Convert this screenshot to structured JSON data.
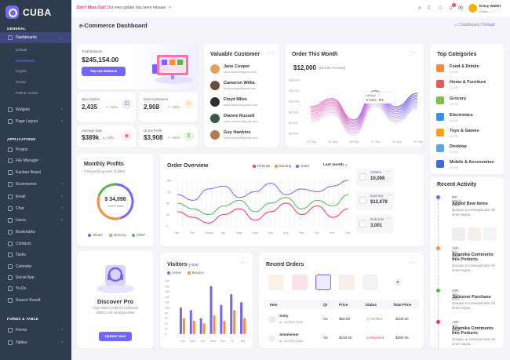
{
  "brand": {
    "name": "CUBA"
  },
  "sidebar": {
    "sections": [
      "GENERAL",
      "APPLICATIONS",
      "FORMS & TABLE"
    ],
    "items": [
      {
        "label": "Dashboards",
        "active": true,
        "icon": "home-icon"
      },
      {
        "label": "Widgets",
        "icon": "widgets-icon"
      },
      {
        "label": "Page Layout",
        "icon": "layout-icon"
      },
      {
        "label": "Project",
        "icon": "project-icon"
      },
      {
        "label": "File Manager",
        "icon": "file-icon"
      },
      {
        "label": "Kanban Board",
        "icon": "kanban-icon"
      },
      {
        "label": "Ecommerce",
        "icon": "cart-icon"
      },
      {
        "label": "Email",
        "icon": "email-icon"
      },
      {
        "label": "Chat",
        "icon": "chat-icon"
      },
      {
        "label": "Users",
        "icon": "users-icon"
      },
      {
        "label": "Bookmarks",
        "icon": "bookmark-icon"
      },
      {
        "label": "Contacts",
        "icon": "contacts-icon"
      },
      {
        "label": "Tasks",
        "icon": "tasks-icon"
      },
      {
        "label": "Calendar",
        "icon": "calendar-icon"
      },
      {
        "label": "Social App",
        "icon": "social-icon"
      },
      {
        "label": "To-Do",
        "icon": "todo-icon"
      },
      {
        "label": "Search Result",
        "icon": "search-icon"
      },
      {
        "label": "Forms",
        "icon": "forms-icon"
      },
      {
        "label": "Tables",
        "icon": "tables-icon"
      }
    ],
    "sub": [
      "Default",
      "Ecommerce",
      "Crypto",
      "Social",
      "Online course"
    ]
  },
  "topbar": {
    "notice_bold": "Don't Miss Out!",
    "notice_text": " Out new update has been release.",
    "user_name": "Emay Walter",
    "user_role": "Admin",
    "badge_count": "1"
  },
  "page": {
    "title": "e-Commerce Dashboard",
    "crumb_mid": "Dashboard",
    "crumb_cur": "Default"
  },
  "balance": {
    "label": "Total Balance",
    "value": "$245,154.00",
    "button": "Top Up Balance"
  },
  "stats": [
    {
      "label": "New Orders",
      "value": "2,435",
      "change": "+50%",
      "trend": "up"
    },
    {
      "label": "New Customers",
      "value": "2,908",
      "change": "+20%",
      "trend": "up"
    },
    {
      "label": "Average Sale",
      "value": "$389k",
      "change": "-10%",
      "trend": "down"
    },
    {
      "label": "Gross Profit",
      "value": "$3,908",
      "change": "+80%",
      "trend": "up"
    }
  ],
  "valuable": {
    "title": "Valuable Customer",
    "customers": [
      {
        "name": "Jane Cooper",
        "email": "alma.lawson@gmail.com",
        "color": "#e3a25a"
      },
      {
        "name": "Cameron Willia",
        "email": "tim.jennings@gmail.com",
        "color": "#6a4c3b"
      },
      {
        "name": "Floyd Miles",
        "email": "kenzi.lawson@gmail.com",
        "color": "#2d2d2d"
      },
      {
        "name": "Dianne Russell",
        "email": "curtis.weaver@gmail.com",
        "color": "#3a5a40"
      },
      {
        "name": "Guy Hawkins",
        "email": "curtis.weaver@gmail.com",
        "color": "#b07b4f"
      }
    ]
  },
  "order_month": {
    "title": "Order This Month",
    "value": "$12,000",
    "goal": "(15,000 To Goal)",
    "tooltip_date": "06 Sep",
    "tooltip_text": "Sales - $4k",
    "yticks": [
      "$14,000",
      "$12,000",
      "$10,000",
      "$8,000",
      "$6,000",
      "$4,000"
    ],
    "xticks": [
      "01 Sep",
      "03 Sep",
      "05 Sep",
      "07 Sep",
      "09 Sep",
      "10 Sep"
    ]
  },
  "top_categories": {
    "title": "Top Categories",
    "items": [
      {
        "name": "Food & Drinks",
        "sub": "12,200",
        "color": "#ff8a3d"
      },
      {
        "name": "Home & Furniture",
        "sub": "12,200",
        "color": "#e85a4f"
      },
      {
        "name": "Grocery",
        "sub": "12,200",
        "color": "#7fbf4d"
      },
      {
        "name": "Electronics",
        "sub": "12,200",
        "color": "#3b8ef0"
      },
      {
        "name": "Toys & Games",
        "sub": "12,200",
        "color": "#f4a21e"
      },
      {
        "name": "Desktop",
        "sub": "12,200",
        "color": "#5aa6e8"
      },
      {
        "name": "Mobile & Accessories",
        "sub": "12,200",
        "color": "#3f6ad8"
      }
    ]
  },
  "monthly_profits": {
    "title": "Monthly Profits",
    "sub": "(Total profit growth of 30%)",
    "value": "$ 34,098",
    "value_label": "Total Profits",
    "legend": [
      "Shoes",
      "Grocery",
      "Other"
    ]
  },
  "order_overview": {
    "title": "Order Overview",
    "legend": [
      "Refunds",
      "Earning",
      "Order"
    ],
    "range": "Last month",
    "yticks": [
      "16k",
      "12k",
      "8k",
      "4k",
      "0"
    ],
    "xticks": [
      "Jan",
      "Feb",
      "March",
      "Apr",
      "May",
      "June",
      "July",
      "Aug",
      "Sep",
      "Oct",
      "Nov",
      "Dec"
    ],
    "stats": [
      {
        "label": "Orders",
        "value": "10,098"
      },
      {
        "label": "Earning",
        "value": "$12,678"
      },
      {
        "label": "Refunds",
        "value": "3,001"
      }
    ]
  },
  "recent_activity": {
    "title": "Recent Activity",
    "items": [
      {
        "time": "8th March, 2022",
        "title": "Added Bew Items",
        "desc": "Quisque a consequat ante Sit amet magna...",
        "color": "#7366ff"
      },
      {
        "time": "15th Oct, 2022",
        "title": "Anamika Comments this Poducts",
        "desc": "Quisque a consequat ante Sit amet magna...",
        "color": "#ff8b3d"
      },
      {
        "time": "20th Sep, 2022",
        "title": "Jacksion Purchase",
        "desc": "Quisque a consequat ante Sit amet magna...",
        "color": "#54ba4a"
      },
      {
        "time": "15th Oct, 2022",
        "title": "Anamika Comments this Poducts",
        "desc": "Quisque a consequat ante Sit amet magna...",
        "color": "#f73164"
      }
    ]
  },
  "discover": {
    "title": "Discover Pro",
    "desc": "Amet minim mollit non deserunt ullamco est sit aliqua dolor",
    "button": "Update Now"
  },
  "visitors": {
    "title": "Visitors",
    "change": "(+2.6)",
    "legend": [
      "Active",
      "Bounce"
    ],
    "yticks": [
      "200",
      "180",
      "160",
      "140",
      "120",
      "100",
      "80",
      "60",
      "40",
      "20",
      "0"
    ],
    "xticks": [
      "Sun",
      "Mon",
      "Tue",
      "Wed",
      "Thu",
      "Fri",
      "Sat"
    ]
  },
  "recent_orders": {
    "title": "Recent Orders",
    "headers": [
      "Item",
      "Qt",
      "Price",
      "Status",
      "Total Price"
    ],
    "rows": [
      {
        "name": "Sony",
        "id": "Id : #CFDE-2163",
        "qt": "X1",
        "price": "$56.00",
        "status": "Verified",
        "total": "$100.00"
      },
      {
        "name": "Sennheiser",
        "id": "Id : #CFDE-2163",
        "qt": "X2",
        "price": "$150.00",
        "status": "Rejected",
        "total": "$390.00"
      }
    ]
  },
  "chart_data": [
    {
      "type": "area",
      "title": "Order This Month",
      "ylim": [
        4000,
        14000
      ],
      "x": [
        "01 Sep",
        "03 Sep",
        "05 Sep",
        "07 Sep",
        "09 Sep",
        "10 Sep"
      ],
      "series": [
        {
          "values": [
            9000,
            10500,
            6500,
            12000,
            9000,
            11500
          ]
        }
      ]
    },
    {
      "type": "line",
      "title": "Order Overview",
      "ylim": [
        0,
        16000
      ],
      "categories": [
        "Jan",
        "Feb",
        "March",
        "Apr",
        "May",
        "June",
        "July",
        "Aug",
        "Sep",
        "Oct",
        "Nov",
        "Dec"
      ],
      "series": [
        {
          "name": "Refunds",
          "values": [
            5000,
            3000,
            1000,
            4000,
            6000,
            2000,
            5000,
            8000,
            4000,
            7000,
            3000,
            6000
          ]
        },
        {
          "name": "Earning",
          "values": [
            8000,
            6000,
            4000,
            7000,
            9000,
            5000,
            8000,
            10000,
            6000,
            9000,
            7000,
            11000
          ]
        },
        {
          "name": "Order",
          "values": [
            11000,
            9000,
            13000,
            14000,
            10000,
            12000,
            15000,
            11000,
            13000,
            12000,
            14000,
            16000
          ]
        }
      ]
    },
    {
      "type": "bar",
      "title": "Visitors",
      "ylim": [
        0,
        200
      ],
      "categories": [
        "Sun",
        "Mon",
        "Tue",
        "Wed",
        "Thu",
        "Fri",
        "Sat"
      ],
      "series": [
        {
          "name": "Active",
          "values": [
            100,
            90,
            60,
            180,
            110,
            150,
            120
          ]
        },
        {
          "name": "Bounce",
          "values": [
            60,
            50,
            40,
            70,
            50,
            90,
            60
          ]
        }
      ]
    },
    {
      "type": "pie",
      "title": "Monthly Profits",
      "categories": [
        "Shoes",
        "Grocery",
        "Other"
      ],
      "values": [
        45,
        35,
        20
      ]
    }
  ],
  "colors": {
    "primary": "#7366ff",
    "secondary": "#ff8b3d",
    "success": "#54ba4a",
    "danger": "#f73164",
    "sidebar": "#2f3c4e"
  }
}
